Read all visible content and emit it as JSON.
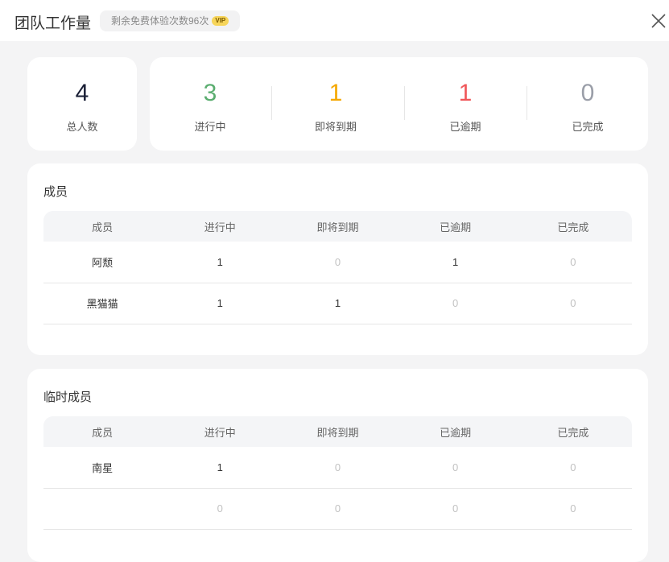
{
  "header": {
    "title": "团队工作量",
    "trial_badge": "剩余免费体验次数96次",
    "vip_label": "VIP",
    "close_icon": "close-icon"
  },
  "summary": {
    "total": {
      "value": "4",
      "label": "总人数",
      "color": "#1a1f36"
    },
    "stats": [
      {
        "value": "3",
        "label": "进行中",
        "color": "#5aad6f"
      },
      {
        "value": "1",
        "label": "即将到期",
        "color": "#f5a800"
      },
      {
        "value": "1",
        "label": "已逾期",
        "color": "#f0575a"
      },
      {
        "value": "0",
        "label": "已完成",
        "color": "#9a9ea8"
      }
    ]
  },
  "members": {
    "title": "成员",
    "columns": [
      "成员",
      "进行中",
      "即将到期",
      "已逾期",
      "已完成"
    ],
    "rows": [
      [
        "阿颓",
        "1",
        "0",
        "1",
        "0"
      ],
      [
        "黑猫猫",
        "1",
        "1",
        "0",
        "0"
      ]
    ]
  },
  "temp_members": {
    "title": "临时成员",
    "columns": [
      "成员",
      "进行中",
      "即将到期",
      "已逾期",
      "已完成"
    ],
    "rows": [
      [
        "南星",
        "1",
        "0",
        "0",
        "0"
      ],
      [
        "",
        "0",
        "0",
        "0",
        "0"
      ]
    ]
  }
}
